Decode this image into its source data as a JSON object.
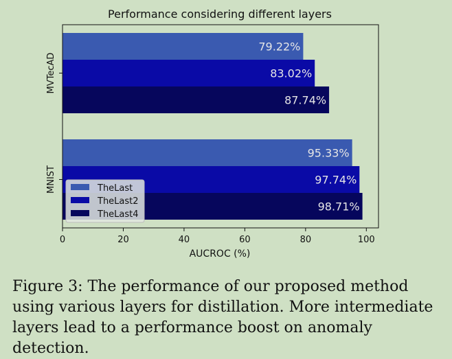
{
  "chart_data": {
    "type": "bar",
    "orientation": "horizontal",
    "title": "Performance considering different layers",
    "xlabel": "AUCROC (%)",
    "ylabel": "",
    "xlim": [
      0,
      104
    ],
    "xticks": [
      0,
      20,
      40,
      60,
      80,
      100
    ],
    "categories": [
      "MVTecAD",
      "MNIST"
    ],
    "series": [
      {
        "name": "TheLast",
        "color": "#3a5ab0",
        "values": [
          79.22,
          95.33
        ],
        "labels": [
          "79.22%",
          "95.33%"
        ]
      },
      {
        "name": "TheLast2",
        "color": "#0a0aa6",
        "values": [
          83.02,
          97.74
        ],
        "labels": [
          "83.02%",
          "97.74%"
        ]
      },
      {
        "name": "TheLast4",
        "color": "#06065c",
        "values": [
          87.74,
          98.71
        ],
        "labels": [
          "87.74%",
          "98.71%"
        ]
      }
    ],
    "grid": false,
    "legend_position": "lower-left"
  },
  "caption": "Figure 3: The performance of our proposed method using various layers for distillation. More intermediate layers lead to a performance boost on anomaly detection."
}
